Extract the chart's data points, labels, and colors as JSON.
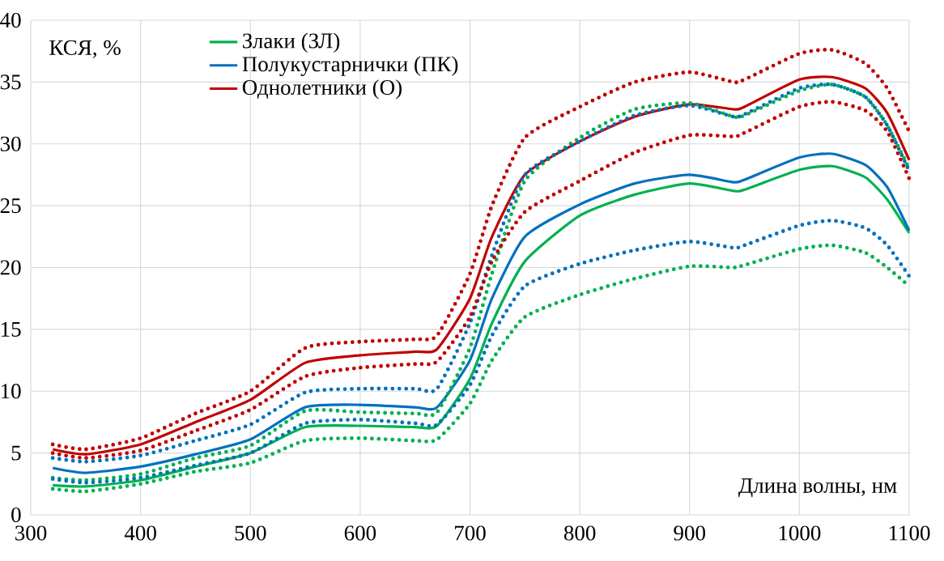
{
  "chart_data": {
    "type": "line",
    "xlabel": "Длина волны, нм",
    "ylabel": "КСЯ, %",
    "x": [
      320,
      350,
      400,
      450,
      500,
      550,
      600,
      650,
      670,
      700,
      720,
      750,
      800,
      850,
      900,
      940,
      950,
      1000,
      1030,
      1060,
      1080,
      1100
    ],
    "xlim": [
      300,
      1100
    ],
    "xticks": [
      300,
      400,
      500,
      600,
      700,
      800,
      900,
      1000,
      1100
    ],
    "ylim": [
      0,
      40
    ],
    "yticks": [
      0,
      5,
      10,
      15,
      20,
      25,
      30,
      35,
      40
    ],
    "grid": true,
    "legend": "top left",
    "series": [
      {
        "name": "Злаки (ЗЛ)",
        "color": "#00b050",
        "line_style": "solid",
        "values": [
          2.4,
          2.3,
          2.8,
          3.9,
          5.0,
          7.1,
          7.2,
          7.1,
          7.2,
          11,
          15.5,
          20.5,
          24.2,
          25.9,
          26.8,
          26.2,
          26.3,
          27.9,
          28.2,
          27.3,
          25.5,
          22.8
        ]
      },
      {
        "name": "Полукустарнички (ПК)",
        "color": "#0070c0",
        "line_style": "solid",
        "values": [
          3.8,
          3.4,
          3.9,
          4.9,
          6.1,
          8.7,
          8.9,
          8.7,
          8.7,
          12.5,
          17.5,
          22.5,
          25.1,
          26.8,
          27.5,
          26.9,
          27.1,
          28.9,
          29.2,
          28.3,
          26.5,
          23.0
        ]
      },
      {
        "name": "Однолетники (О)",
        "color": "#c00000",
        "line_style": "solid",
        "values": [
          5.3,
          4.9,
          5.7,
          7.5,
          9.3,
          12.3,
          12.9,
          13.2,
          13.4,
          17.5,
          22.5,
          27.5,
          30.2,
          32.2,
          33.2,
          32.8,
          33.0,
          35.2,
          35.4,
          34.5,
          32.5,
          28.7
        ]
      },
      {
        "color": "#00b050",
        "line_style": "dotted",
        "values": [
          3.0,
          2.8,
          3.3,
          4.6,
          5.6,
          8.4,
          8.3,
          8.2,
          8.3,
          13.5,
          19.5,
          27,
          30.5,
          32.8,
          33.3,
          32.2,
          32.3,
          34.3,
          34.8,
          33.8,
          31.5,
          28.0
        ]
      },
      {
        "color": "#00b050",
        "line_style": "dotted",
        "values": [
          2.1,
          1.9,
          2.5,
          3.5,
          4.2,
          6.0,
          6.2,
          6.0,
          6.1,
          9,
          12.5,
          16,
          17.8,
          19.1,
          20.1,
          20.0,
          20.2,
          21.5,
          21.8,
          21.2,
          20.0,
          18.5
        ]
      },
      {
        "color": "#0070c0",
        "line_style": "dotted",
        "values": [
          4.6,
          4.3,
          4.8,
          6.0,
          7.3,
          9.9,
          10.2,
          10.2,
          10.2,
          15.5,
          21,
          27.5,
          30.2,
          32.3,
          33.1,
          32.2,
          32.4,
          34.5,
          34.8,
          33.8,
          31.5,
          27.8
        ]
      },
      {
        "color": "#0070c0",
        "line_style": "dotted",
        "values": [
          2.9,
          2.6,
          3.0,
          4.0,
          5.0,
          7.4,
          7.7,
          7.4,
          7.3,
          10.5,
          14.5,
          18.5,
          20.3,
          21.4,
          22.1,
          21.6,
          21.8,
          23.4,
          23.8,
          23.2,
          21.8,
          19.3
        ]
      },
      {
        "color": "#c00000",
        "line_style": "dotted",
        "values": [
          5.7,
          5.3,
          6.2,
          8.2,
          10.0,
          13.5,
          14.0,
          14.2,
          14.5,
          19.5,
          25,
          30.5,
          33.0,
          35,
          35.8,
          35.0,
          35.2,
          37.3,
          37.6,
          36.5,
          34.5,
          31.0
        ]
      },
      {
        "color": "#c00000",
        "line_style": "dotted",
        "values": [
          5.0,
          4.6,
          5.2,
          6.8,
          8.5,
          11.2,
          11.9,
          12.2,
          12.4,
          16,
          20.5,
          24.5,
          27.0,
          29.3,
          30.7,
          30.6,
          30.9,
          33.0,
          33.4,
          32.7,
          31.0,
          27.2
        ]
      }
    ]
  }
}
